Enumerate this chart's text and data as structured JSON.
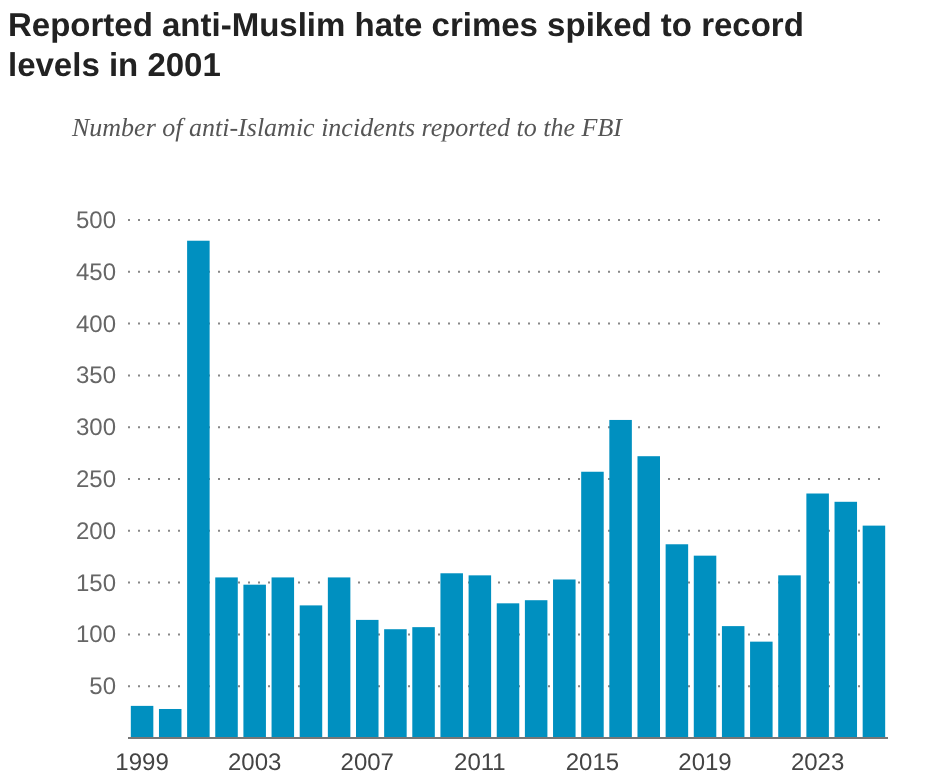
{
  "chart_data": {
    "type": "bar",
    "title": "Reported anti-Muslim hate crimes spiked to record levels in 2001",
    "subtitle": "Number of anti-Islamic incidents reported to the FBI",
    "categories": [
      "1999",
      null,
      null,
      null,
      "2003",
      null,
      null,
      null,
      "2007",
      null,
      null,
      null,
      "2011",
      null,
      null,
      null,
      "2015",
      null,
      null,
      null,
      "2019",
      null,
      null,
      null,
      "2023",
      null,
      null
    ],
    "values": [
      31,
      28,
      480,
      155,
      148,
      155,
      128,
      155,
      114,
      105,
      107,
      159,
      157,
      130,
      133,
      153,
      257,
      307,
      272,
      187,
      176,
      108,
      93,
      157,
      236,
      228,
      205
    ],
    "color": "#0090c0",
    "ylim": [
      0,
      500
    ],
    "yticks": [
      50,
      100,
      150,
      200,
      250,
      300,
      350,
      400,
      450,
      500
    ],
    "grid": "y"
  }
}
